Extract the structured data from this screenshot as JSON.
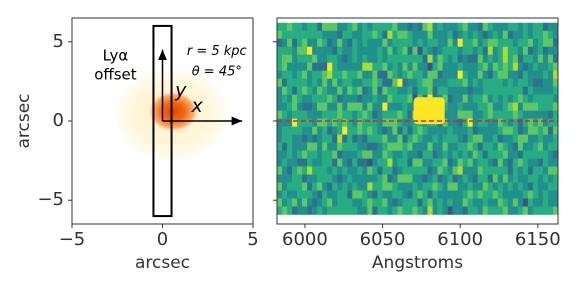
{
  "chart_data": [
    {
      "type": "image",
      "xlabel": "arcsec",
      "ylabel": "arcsec",
      "xlim": [
        -5,
        5
      ],
      "ylim": [
        -6.5,
        6.5
      ],
      "xticks": [
        {
          "value": -5,
          "label": "−5"
        },
        0,
        5
      ],
      "yticks": [
        {
          "value": -5,
          "label": "−5"
        },
        0,
        5
      ],
      "annotations": [
        "Lyα",
        "offset",
        "r = 5 kpc",
        "θ = 45°",
        "y",
        "x"
      ]
    },
    {
      "type": "spectrum",
      "xlabel": "Angstroms",
      "xlim": [
        5982,
        6163
      ],
      "ylim": [
        -6.5,
        6.5
      ],
      "xticks": [
        6000,
        6050,
        6100,
        6150
      ],
      "yticks": [
        -5,
        0,
        5
      ]
    }
  ]
}
